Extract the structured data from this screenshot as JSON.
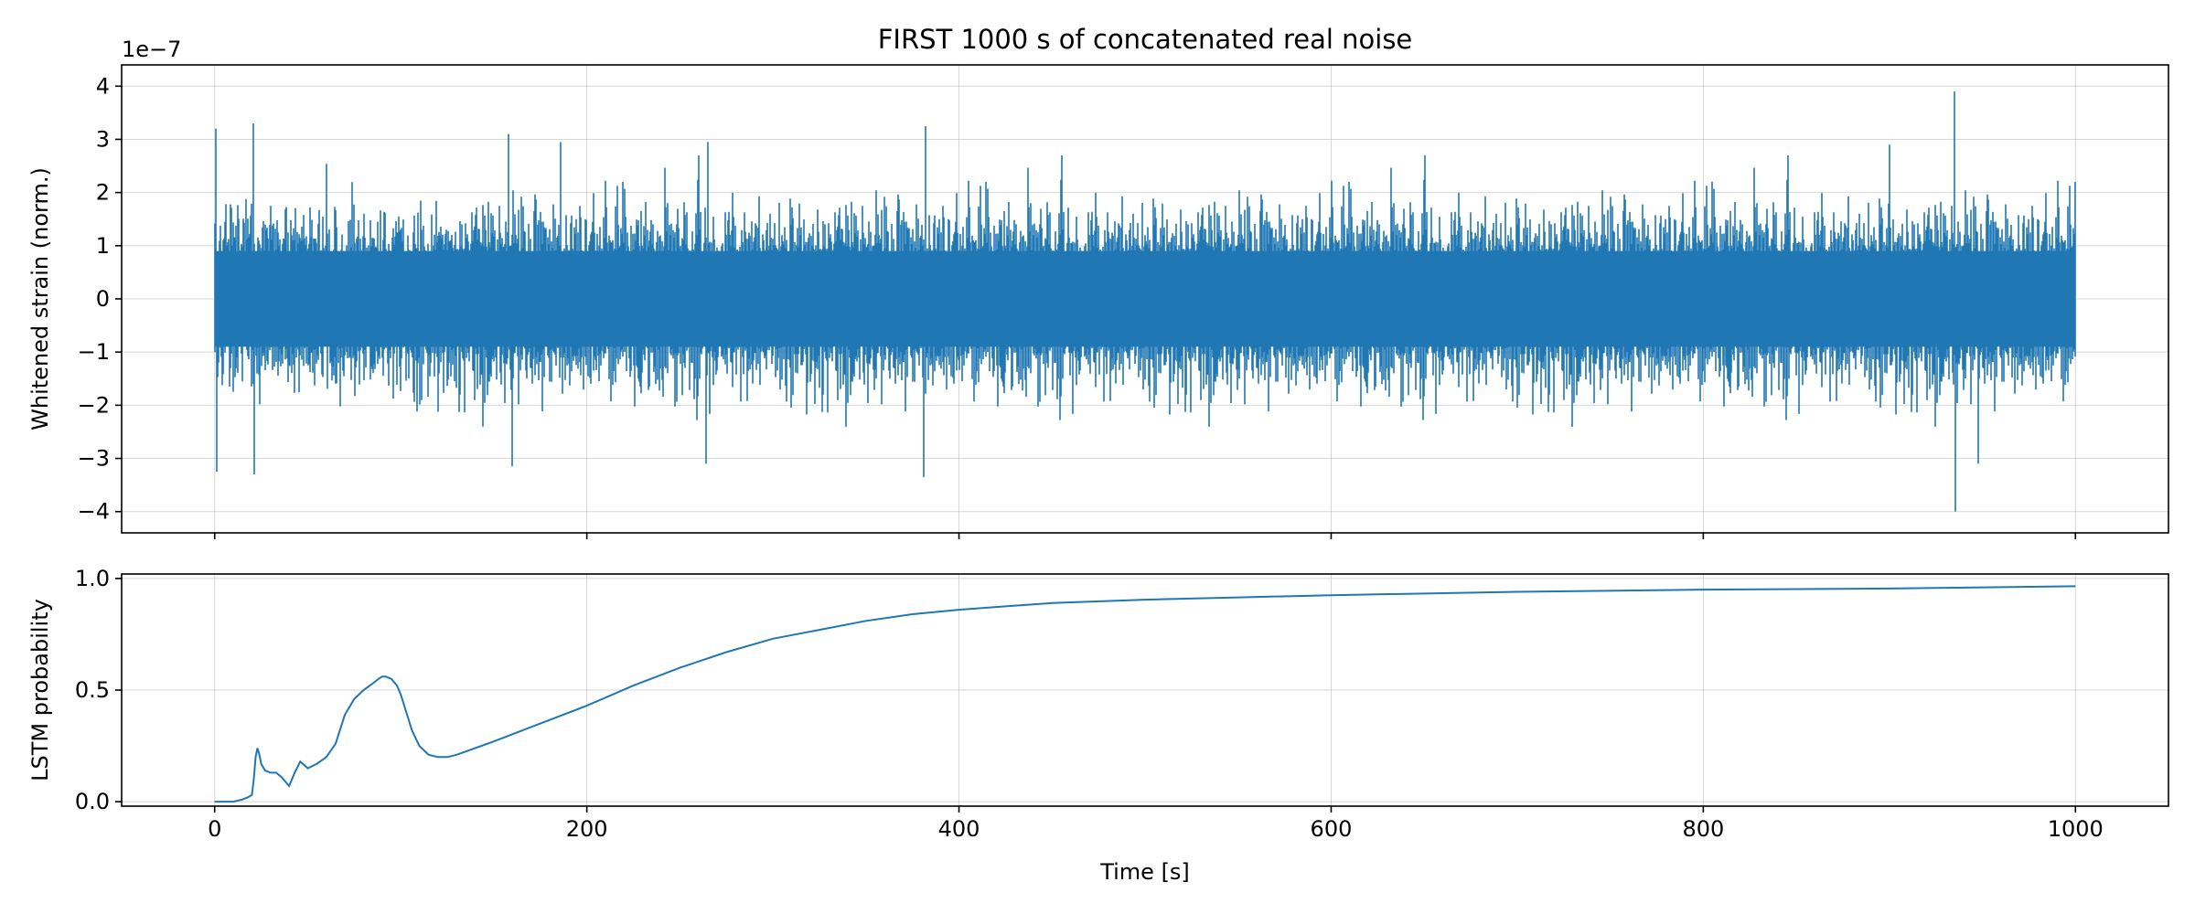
{
  "chart_data": [
    {
      "type": "line",
      "title": "FIRST 1000 s of concatenated real noise",
      "xlabel": "",
      "ylabel": "Whitened strain (norm.)",
      "offset_label": "1e−7",
      "xlim": [
        -50,
        1050
      ],
      "ylim": [
        -4.4,
        4.4
      ],
      "yticks": [
        -4,
        -3,
        -2,
        -1,
        0,
        1,
        2,
        3,
        4
      ],
      "ytick_labels": [
        "−4",
        "−3",
        "−2",
        "−1",
        "0",
        "1",
        "2",
        "3",
        "4"
      ],
      "xticks": [
        0,
        200,
        400,
        600,
        800,
        1000
      ],
      "grid": true,
      "series": [
        {
          "name": "whitened strain",
          "color": "#1f77b4",
          "x_range": [
            0,
            1000
          ],
          "typical_amplitude": 1.3,
          "peaks": [
            {
              "x": 0.5,
              "y": 3.2
            },
            {
              "x": 1,
              "y": -3.25
            },
            {
              "x": 21,
              "y": 3.3
            },
            {
              "x": 21.5,
              "y": -3.3
            },
            {
              "x": 158,
              "y": 3.1
            },
            {
              "x": 160,
              "y": -3.15
            },
            {
              "x": 186,
              "y": 2.95
            },
            {
              "x": 264,
              "y": -3.1
            },
            {
              "x": 265,
              "y": 2.95
            },
            {
              "x": 382,
              "y": 3.25
            },
            {
              "x": 381,
              "y": -3.35
            },
            {
              "x": 935,
              "y": 3.9
            },
            {
              "x": 935.5,
              "y": -4.0
            },
            {
              "x": 900,
              "y": 2.9
            },
            {
              "x": 948,
              "y": -3.1
            }
          ]
        }
      ]
    },
    {
      "type": "line",
      "title": "",
      "xlabel": "Time [s]",
      "ylabel": "LSTM probability",
      "xlim": [
        -50,
        1050
      ],
      "ylim": [
        -0.02,
        1.02
      ],
      "yticks": [
        0.0,
        0.5,
        1.0
      ],
      "ytick_labels": [
        "0.0",
        "0.5",
        "1.0"
      ],
      "xticks": [
        0,
        200,
        400,
        600,
        800,
        1000
      ],
      "xtick_labels": [
        "0",
        "200",
        "400",
        "600",
        "800",
        "1000"
      ],
      "grid": true,
      "series": [
        {
          "name": "LSTM probability",
          "color": "#1f77b4",
          "x": [
            0,
            5,
            10,
            15,
            18,
            20,
            21,
            22,
            23,
            24,
            25,
            27,
            30,
            33,
            36,
            40,
            43,
            46,
            50,
            55,
            60,
            65,
            70,
            75,
            80,
            85,
            88,
            90,
            92,
            95,
            98,
            100,
            103,
            106,
            110,
            115,
            120,
            125,
            130,
            140,
            150,
            175,
            200,
            225,
            250,
            275,
            300,
            325,
            350,
            375,
            400,
            425,
            450,
            500,
            550,
            600,
            700,
            800,
            900,
            1000
          ],
          "y": [
            0.0,
            0.0,
            0.0,
            0.01,
            0.02,
            0.03,
            0.1,
            0.2,
            0.24,
            0.21,
            0.17,
            0.14,
            0.13,
            0.13,
            0.11,
            0.07,
            0.13,
            0.18,
            0.15,
            0.17,
            0.2,
            0.26,
            0.39,
            0.46,
            0.5,
            0.53,
            0.55,
            0.56,
            0.56,
            0.55,
            0.52,
            0.48,
            0.4,
            0.32,
            0.25,
            0.21,
            0.2,
            0.2,
            0.21,
            0.24,
            0.27,
            0.35,
            0.43,
            0.52,
            0.6,
            0.67,
            0.73,
            0.77,
            0.81,
            0.84,
            0.86,
            0.875,
            0.89,
            0.905,
            0.915,
            0.925,
            0.94,
            0.95,
            0.955,
            0.965
          ]
        }
      ]
    }
  ]
}
